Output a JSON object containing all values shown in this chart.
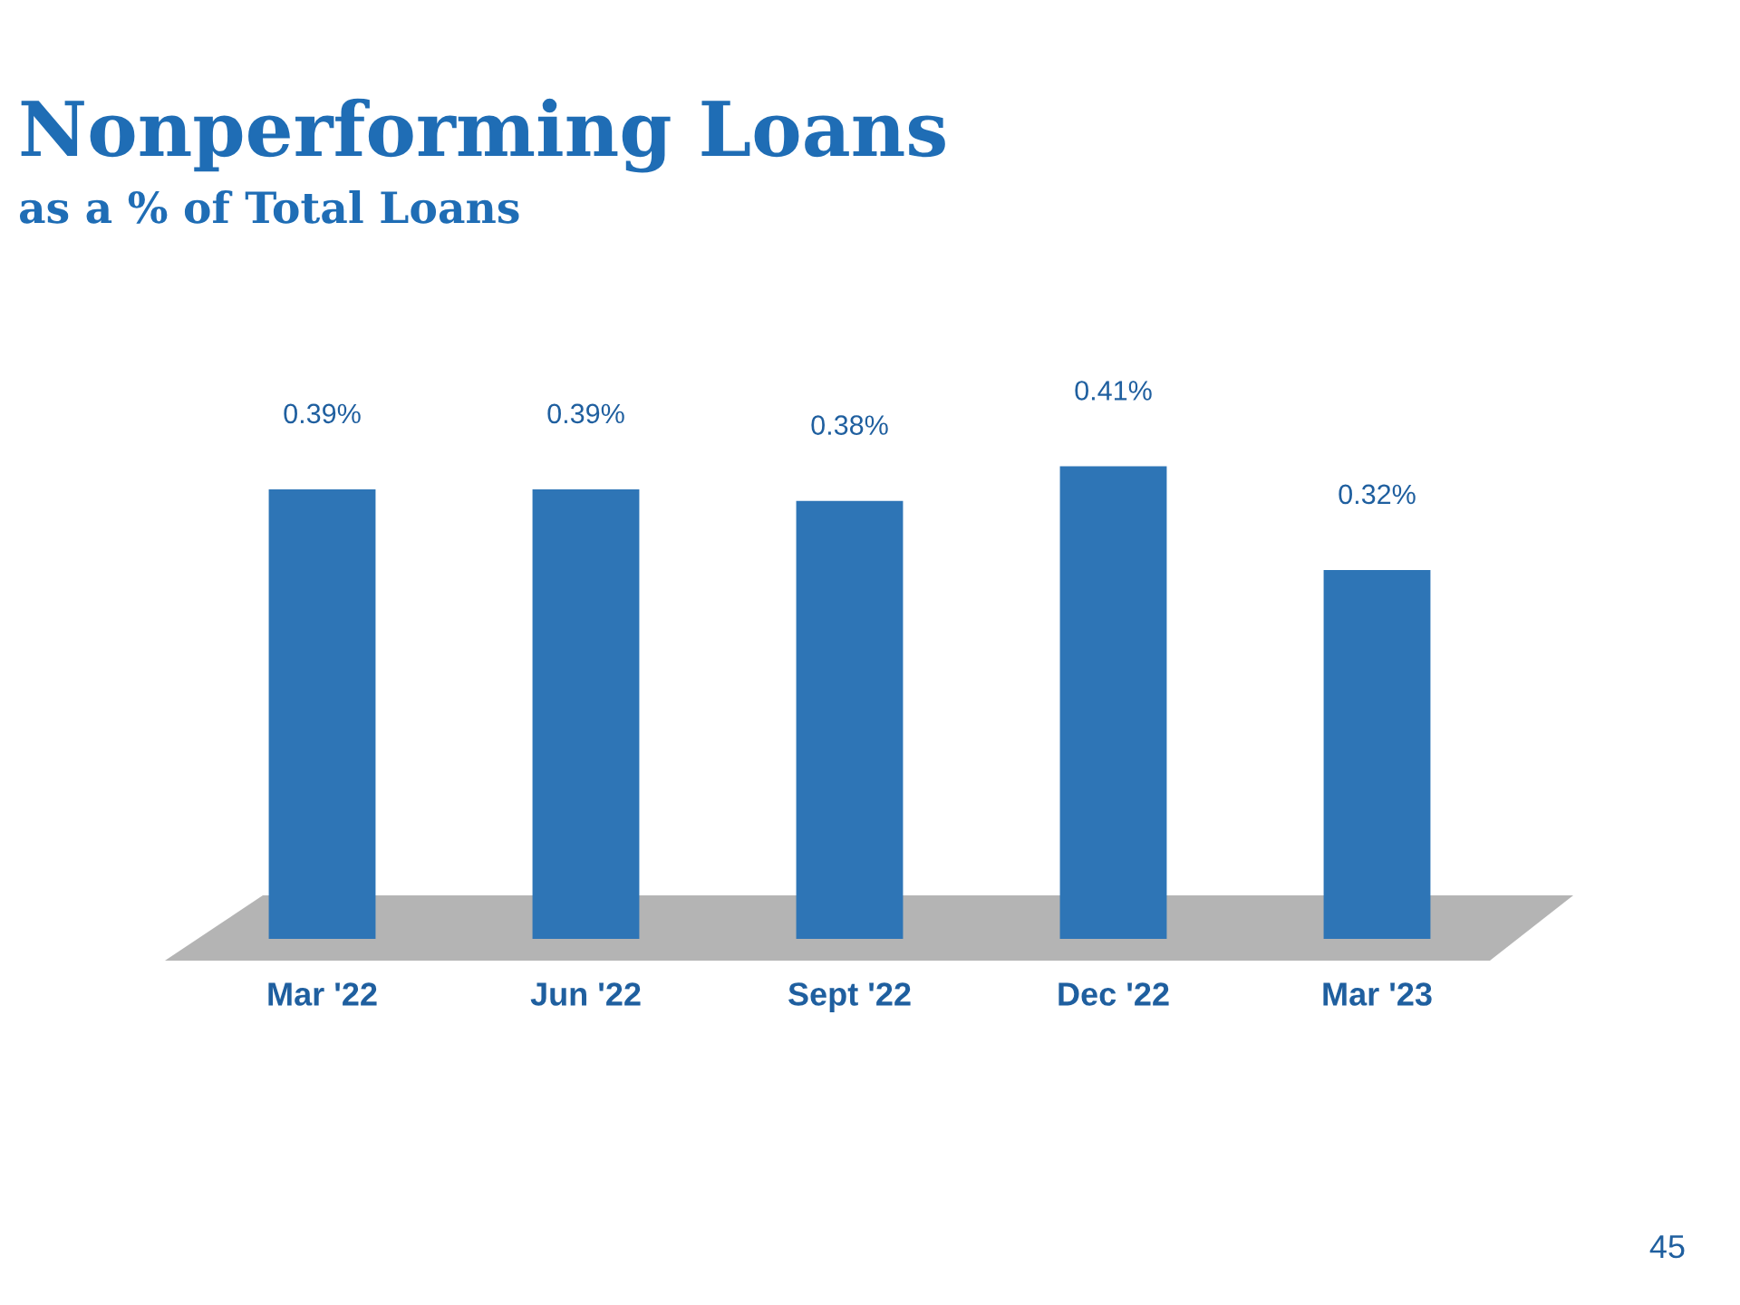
{
  "chart_data": {
    "type": "bar",
    "title": "Nonperforming Loans",
    "subtitle": "as a % of Total Loans",
    "categories": [
      "Mar '22",
      "Jun '22",
      "Sept '22",
      "Dec '22",
      "Mar '23"
    ],
    "values": [
      0.39,
      0.39,
      0.38,
      0.41,
      0.32
    ],
    "value_labels": [
      "0.39%",
      "0.39%",
      "0.38%",
      "0.41%",
      "0.32%"
    ],
    "color": "#2e75b6",
    "annotations": [
      "45"
    ]
  }
}
